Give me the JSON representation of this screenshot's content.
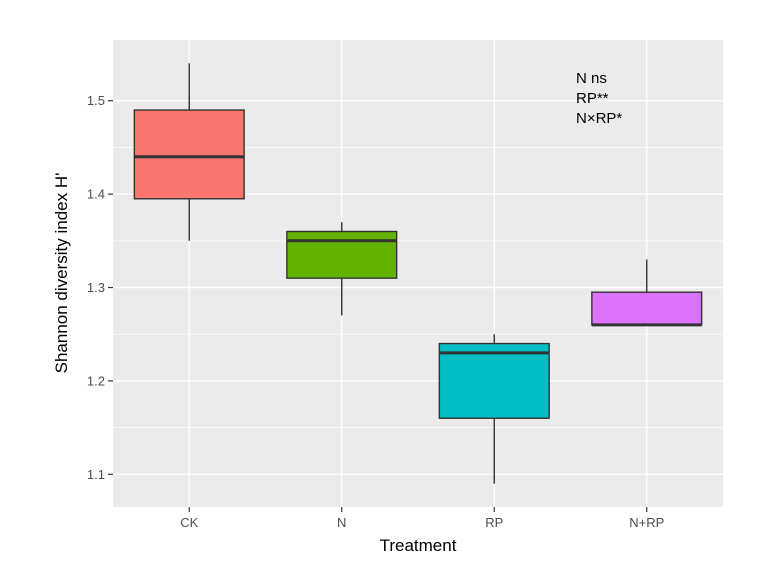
{
  "chart_data": {
    "type": "box",
    "xlabel": "Treatment",
    "ylabel": "Shannon diversity index H'",
    "ylim": [
      1.065,
      1.565
    ],
    "yticks": [
      1.1,
      1.2,
      1.3,
      1.4,
      1.5
    ],
    "ytick_labels": [
      "1.1",
      "1.2",
      "1.3",
      "1.4",
      "1.5"
    ],
    "categories": [
      "CK",
      "N",
      "RP",
      "N+RP"
    ],
    "boxes": [
      {
        "category": "CK",
        "min": 1.35,
        "q1": 1.395,
        "median": 1.44,
        "q3": 1.49,
        "max": 1.54,
        "color": "#F8766D"
      },
      {
        "category": "N",
        "min": 1.27,
        "q1": 1.31,
        "median": 1.35,
        "q3": 1.36,
        "max": 1.37,
        "color": "#64B200"
      },
      {
        "category": "RP",
        "min": 1.09,
        "q1": 1.16,
        "median": 1.23,
        "q3": 1.24,
        "max": 1.25,
        "color": "#00BFC4"
      },
      {
        "category": "N+RP",
        "min": 1.26,
        "q1": 1.26,
        "median": 1.26,
        "q3": 1.295,
        "max": 1.33,
        "color": "#DC71FA"
      }
    ],
    "annotations": [
      "N ns",
      "RP**",
      "N×RP*"
    ],
    "grid": true,
    "legend": "none"
  },
  "colors": {
    "panel_background": "#EBEBEB",
    "grid_major": "#FFFFFF",
    "box_outline": "#333333"
  }
}
